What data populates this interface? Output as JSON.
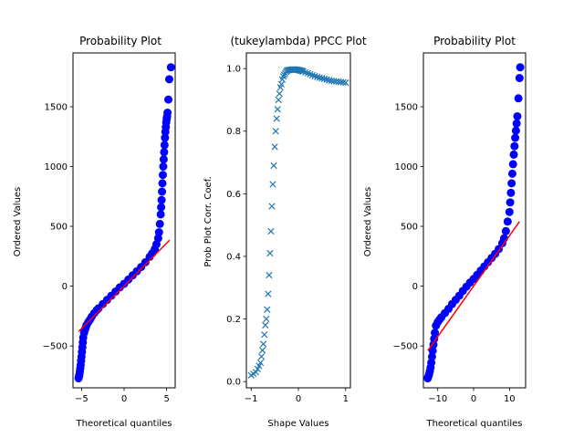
{
  "chart_data": [
    {
      "type": "scatter",
      "title": "Probability Plot",
      "xlabel": "Theoretical quantiles",
      "ylabel": "Ordered Values",
      "xlim": [
        -6,
        6
      ],
      "ylim": [
        -850,
        1950
      ],
      "xticks": [
        -5,
        0,
        5
      ],
      "yticks": [
        -500,
        0,
        500,
        1000,
        1500
      ],
      "marker_color": "#0000ff",
      "fit_color": "#ff0000",
      "fit_line": {
        "x": [
          -5.35,
          5.35
        ],
        "y": [
          -380,
          385
        ]
      },
      "points": {
        "x": [
          -5.35,
          -5.3,
          -5.25,
          -5.2,
          -5.15,
          -5.1,
          -5.05,
          -5.0,
          -4.95,
          -4.9,
          -4.85,
          -4.8,
          -4.7,
          -4.6,
          -4.5,
          -4.4,
          -4.2,
          -4.0,
          -3.8,
          -3.5,
          -3.2,
          -3.0,
          -2.5,
          -2.0,
          -1.5,
          -1.0,
          -0.5,
          0.0,
          0.5,
          1.0,
          1.5,
          2.0,
          2.5,
          3.0,
          3.3,
          3.6,
          3.8,
          4.0,
          4.1,
          4.2,
          4.3,
          4.35,
          4.4,
          4.45,
          4.5,
          4.55,
          4.6,
          4.65,
          4.7,
          4.75,
          4.8,
          4.85,
          4.9,
          4.95,
          5.0,
          5.05,
          5.1,
          5.2,
          5.3,
          5.5
        ],
        "y": [
          -770,
          -755,
          -740,
          -715,
          -690,
          -660,
          -625,
          -590,
          -550,
          -510,
          -470,
          -430,
          -390,
          -365,
          -345,
          -325,
          -300,
          -280,
          -255,
          -225,
          -200,
          -185,
          -150,
          -115,
          -80,
          -45,
          -10,
          20,
          55,
          90,
          125,
          160,
          200,
          245,
          275,
          310,
          350,
          400,
          450,
          520,
          600,
          660,
          720,
          790,
          860,
          930,
          1000,
          1060,
          1120,
          1180,
          1240,
          1290,
          1330,
          1370,
          1400,
          1420,
          1450,
          1560,
          1730,
          1830
        ]
      }
    },
    {
      "type": "scatter",
      "title": "(tukeylambda) PPCC Plot",
      "xlabel": "Shape Values",
      "ylabel": "Prob Plot Corr. Coef.",
      "xlim": [
        -1.1,
        1.1
      ],
      "ylim": [
        -0.02,
        1.05
      ],
      "xticks": [
        -1,
        0,
        1
      ],
      "yticks": [
        0.0,
        0.2,
        0.4,
        0.6,
        0.8,
        1.0
      ],
      "marker_color": "#1f77b4",
      "points": {
        "x": [
          -1.0,
          -0.95,
          -0.9,
          -0.86,
          -0.83,
          -0.8,
          -0.78,
          -0.76,
          -0.74,
          -0.72,
          -0.7,
          -0.68,
          -0.66,
          -0.64,
          -0.62,
          -0.6,
          -0.58,
          -0.56,
          -0.54,
          -0.52,
          -0.5,
          -0.48,
          -0.46,
          -0.44,
          -0.42,
          -0.4,
          -0.38,
          -0.36,
          -0.34,
          -0.32,
          -0.3,
          -0.28,
          -0.26,
          -0.24,
          -0.22,
          -0.2,
          -0.18,
          -0.16,
          -0.14,
          -0.12,
          -0.1,
          -0.08,
          -0.06,
          -0.04,
          -0.02,
          0.0,
          0.02,
          0.04,
          0.06,
          0.08,
          0.1,
          0.15,
          0.2,
          0.25,
          0.3,
          0.35,
          0.4,
          0.45,
          0.5,
          0.55,
          0.6,
          0.65,
          0.7,
          0.75,
          0.8,
          0.85,
          0.9,
          0.95,
          1.0
        ],
        "y": [
          0.02,
          0.025,
          0.03,
          0.04,
          0.05,
          0.06,
          0.08,
          0.1,
          0.12,
          0.15,
          0.18,
          0.2,
          0.23,
          0.28,
          0.34,
          0.41,
          0.48,
          0.56,
          0.63,
          0.69,
          0.75,
          0.8,
          0.84,
          0.87,
          0.9,
          0.92,
          0.94,
          0.95,
          0.965,
          0.975,
          0.98,
          0.985,
          0.99,
          0.993,
          0.995,
          0.995,
          0.996,
          0.996,
          0.997,
          0.997,
          0.997,
          0.997,
          0.997,
          0.996,
          0.996,
          0.995,
          0.995,
          0.994,
          0.993,
          0.992,
          0.991,
          0.988,
          0.985,
          0.982,
          0.979,
          0.976,
          0.973,
          0.971,
          0.969,
          0.967,
          0.965,
          0.963,
          0.961,
          0.96,
          0.959,
          0.958,
          0.957,
          0.956,
          0.955
        ]
      }
    },
    {
      "type": "scatter",
      "title": "Probability Plot",
      "xlabel": "Theoretical quantiles",
      "ylabel": "Ordered Values",
      "xlim": [
        -14,
        14.5
      ],
      "ylim": [
        -850,
        1950
      ],
      "xticks": [
        -10,
        0,
        10
      ],
      "yticks": [
        -500,
        0,
        500,
        1000,
        1500
      ],
      "marker_color": "#0000ff",
      "fit_color": "#ff0000",
      "fit_line": {
        "x": [
          -12.8,
          12.8
        ],
        "y": [
          -540,
          540
        ]
      },
      "points": {
        "x": [
          -12.8,
          -12.6,
          -12.4,
          -12.2,
          -12.0,
          -11.8,
          -11.6,
          -11.4,
          -11.2,
          -11.0,
          -10.8,
          -10.5,
          -10.0,
          -9.5,
          -9.0,
          -8.0,
          -7.0,
          -6.0,
          -5.0,
          -4.0,
          -3.0,
          -2.0,
          -1.0,
          0.0,
          1.0,
          2.0,
          3.0,
          4.0,
          5.0,
          6.0,
          7.0,
          8.0,
          8.5,
          9.0,
          9.5,
          10.0,
          10.2,
          10.4,
          10.6,
          10.8,
          11.0,
          11.2,
          11.4,
          11.6,
          11.8,
          12.0,
          12.2,
          12.5,
          12.8,
          13.0
        ],
        "y": [
          -770,
          -755,
          -735,
          -710,
          -680,
          -640,
          -590,
          -540,
          -490,
          -440,
          -390,
          -330,
          -300,
          -280,
          -260,
          -225,
          -190,
          -150,
          -115,
          -80,
          -40,
          -5,
          30,
          60,
          95,
          130,
          165,
          200,
          235,
          270,
          310,
          360,
          400,
          460,
          540,
          620,
          700,
          780,
          860,
          940,
          1020,
          1100,
          1170,
          1240,
          1300,
          1360,
          1420,
          1570,
          1740,
          1830
        ]
      }
    }
  ]
}
